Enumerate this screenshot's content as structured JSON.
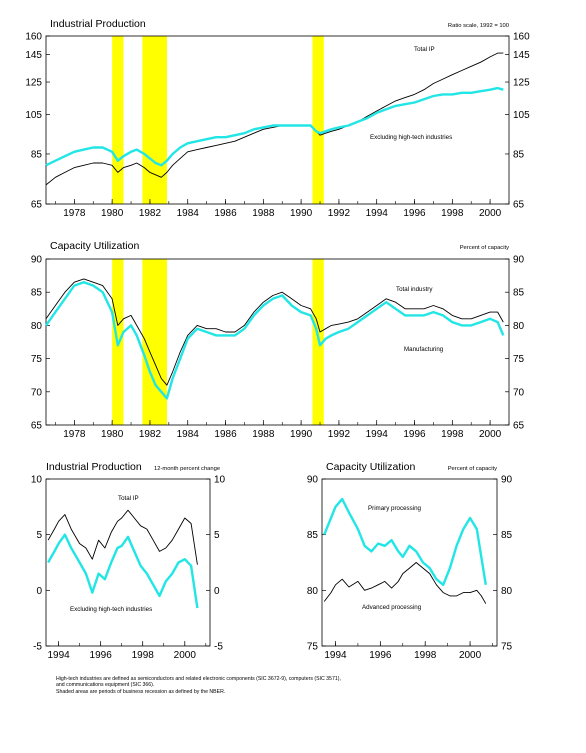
{
  "colors": {
    "primary": "#000000",
    "secondary": "#22e5e5",
    "recession": "#ffff00"
  },
  "chart_data": [
    {
      "type": "line",
      "title": "Industrial Production",
      "note": "Ratio scale, 1992 = 100",
      "log_scale": true,
      "xlim": [
        1976.5,
        2001.0
      ],
      "ylim": [
        65,
        160
      ],
      "y_ticks": [
        65,
        85,
        105,
        125,
        145,
        160
      ],
      "x_ticks": [
        1978,
        1980,
        1982,
        1984,
        1986,
        1988,
        1990,
        1992,
        1994,
        1996,
        1998,
        2000
      ],
      "recessions": [
        [
          1980.0,
          1980.6
        ],
        [
          1981.6,
          1982.9
        ],
        [
          1990.6,
          1991.2
        ]
      ],
      "series": [
        {
          "name": "Total IP",
          "color": "primary",
          "x": [
            1976.5,
            1977.0,
            1977.5,
            1978.0,
            1978.5,
            1979.0,
            1979.5,
            1980.0,
            1980.3,
            1980.6,
            1981.0,
            1981.3,
            1981.7,
            1982.0,
            1982.3,
            1982.6,
            1982.9,
            1983.2,
            1983.6,
            1984.0,
            1984.5,
            1985.0,
            1985.5,
            1986.0,
            1986.5,
            1987.0,
            1987.5,
            1988.0,
            1988.5,
            1989.0,
            1989.5,
            1990.0,
            1990.5,
            1990.8,
            1991.0,
            1991.3,
            1991.6,
            1992.0,
            1992.5,
            1993.0,
            1993.5,
            1994.0,
            1994.5,
            1995.0,
            1995.5,
            1996.0,
            1996.5,
            1997.0,
            1997.5,
            1998.0,
            1998.5,
            1999.0,
            1999.5,
            2000.0,
            2000.4,
            2000.7
          ],
          "y": [
            72,
            75,
            77,
            79,
            80,
            81,
            81,
            80,
            77,
            79,
            80,
            81,
            79,
            77,
            76,
            75,
            77,
            80,
            83,
            86,
            87,
            88,
            89,
            90,
            91,
            93,
            95,
            97,
            98,
            99,
            99,
            99,
            99,
            96,
            94,
            95,
            96,
            97,
            99,
            101,
            104,
            107,
            110,
            113,
            115,
            117,
            120,
            124,
            127,
            130,
            133,
            136,
            139,
            143,
            146,
            146
          ]
        },
        {
          "name": "Excluding high-tech industries",
          "color": "secondary",
          "x": [
            1976.5,
            1977.0,
            1977.5,
            1978.0,
            1978.5,
            1979.0,
            1979.5,
            1980.0,
            1980.3,
            1980.6,
            1981.0,
            1981.3,
            1981.7,
            1982.0,
            1982.3,
            1982.6,
            1982.9,
            1983.2,
            1983.6,
            1984.0,
            1984.5,
            1985.0,
            1985.5,
            1986.0,
            1986.5,
            1987.0,
            1987.5,
            1988.0,
            1988.5,
            1989.0,
            1989.5,
            1990.0,
            1990.5,
            1990.8,
            1991.0,
            1991.3,
            1991.6,
            1992.0,
            1992.5,
            1993.0,
            1993.5,
            1994.0,
            1994.5,
            1995.0,
            1995.5,
            1996.0,
            1996.5,
            1997.0,
            1997.5,
            1998.0,
            1998.5,
            1999.0,
            1999.5,
            2000.0,
            2000.4,
            2000.7
          ],
          "y": [
            80,
            82,
            84,
            86,
            87,
            88,
            88,
            86,
            82,
            84,
            86,
            87,
            85,
            83,
            81,
            80,
            82,
            85,
            88,
            90,
            91,
            92,
            93,
            93,
            94,
            95,
            97,
            98,
            99,
            99,
            99,
            99,
            99,
            96,
            95,
            96,
            97,
            98,
            99,
            101,
            103,
            106,
            108,
            110,
            111,
            112,
            114,
            116,
            117,
            117,
            118,
            118,
            119,
            120,
            121,
            120
          ]
        }
      ]
    },
    {
      "type": "line",
      "title": "Capacity Utilization",
      "note": "Percent of capacity",
      "xlim": [
        1976.5,
        2001.0
      ],
      "ylim": [
        65,
        90
      ],
      "y_ticks": [
        65,
        70,
        75,
        80,
        85,
        90
      ],
      "x_ticks": [
        1978,
        1980,
        1982,
        1984,
        1986,
        1988,
        1990,
        1992,
        1994,
        1996,
        1998,
        2000
      ],
      "recessions": [
        [
          1980.0,
          1980.6
        ],
        [
          1981.6,
          1982.9
        ],
        [
          1990.6,
          1991.2
        ]
      ],
      "series": [
        {
          "name": "Total industry",
          "color": "primary",
          "x": [
            1976.5,
            1977.0,
            1977.5,
            1978.0,
            1978.5,
            1979.0,
            1979.5,
            1980.0,
            1980.3,
            1980.6,
            1981.0,
            1981.3,
            1981.7,
            1982.0,
            1982.3,
            1982.6,
            1982.9,
            1983.2,
            1983.6,
            1984.0,
            1984.5,
            1985.0,
            1985.5,
            1986.0,
            1986.5,
            1987.0,
            1987.5,
            1988.0,
            1988.5,
            1989.0,
            1989.5,
            1990.0,
            1990.5,
            1990.8,
            1991.0,
            1991.3,
            1991.6,
            1992.0,
            1992.5,
            1993.0,
            1993.5,
            1994.0,
            1994.5,
            1995.0,
            1995.5,
            1996.0,
            1996.5,
            1997.0,
            1997.5,
            1998.0,
            1998.5,
            1999.0,
            1999.5,
            2000.0,
            2000.4,
            2000.7
          ],
          "y": [
            81,
            83,
            85,
            86.5,
            87,
            86.5,
            86,
            84,
            80,
            81,
            81.5,
            80,
            78,
            76,
            74,
            72,
            71,
            73,
            76,
            78.5,
            80,
            79.5,
            79.5,
            79,
            79,
            80,
            82,
            83.5,
            84.5,
            85,
            84,
            83,
            82.5,
            81,
            79,
            79.5,
            80,
            80.2,
            80.5,
            81,
            82,
            83,
            84,
            83.5,
            82.5,
            82.5,
            82.5,
            83,
            82.5,
            81.5,
            81,
            81,
            81.5,
            82,
            82,
            80.5
          ]
        },
        {
          "name": "Manufacturing",
          "color": "secondary",
          "x": [
            1976.5,
            1977.0,
            1977.5,
            1978.0,
            1978.5,
            1979.0,
            1979.5,
            1980.0,
            1980.3,
            1980.6,
            1981.0,
            1981.3,
            1981.7,
            1982.0,
            1982.3,
            1982.6,
            1982.9,
            1983.2,
            1983.6,
            1984.0,
            1984.5,
            1985.0,
            1985.5,
            1986.0,
            1986.5,
            1987.0,
            1987.5,
            1988.0,
            1988.5,
            1989.0,
            1989.5,
            1990.0,
            1990.5,
            1990.8,
            1991.0,
            1991.3,
            1991.6,
            1992.0,
            1992.5,
            1993.0,
            1993.5,
            1994.0,
            1994.5,
            1995.0,
            1995.5,
            1996.0,
            1996.5,
            1997.0,
            1997.5,
            1998.0,
            1998.5,
            1999.0,
            1999.5,
            2000.0,
            2000.4,
            2000.7
          ],
          "y": [
            80,
            82,
            84,
            86,
            86.5,
            86,
            85,
            82,
            77,
            79,
            80,
            78.5,
            75.5,
            73,
            71,
            70,
            69,
            72,
            75,
            78,
            79.5,
            79,
            78.5,
            78.5,
            78.5,
            79.5,
            81.5,
            83,
            84,
            84.5,
            83,
            82,
            81.5,
            79.5,
            77,
            78,
            78.5,
            79,
            79.5,
            80.5,
            81.5,
            82.5,
            83.5,
            82.5,
            81.5,
            81.5,
            81.5,
            82,
            81.5,
            80.5,
            80,
            80,
            80.5,
            81,
            80.5,
            78.5
          ]
        }
      ]
    },
    {
      "type": "line",
      "title": "Industrial Production",
      "note": "12-month percent change",
      "xlim": [
        1993.4,
        2001.2
      ],
      "ylim": [
        -5,
        10
      ],
      "y_ticks": [
        -5,
        0,
        5,
        10
      ],
      "x_ticks": [
        1994,
        1996,
        1998,
        2000
      ],
      "series": [
        {
          "name": "Total IP",
          "color": "primary",
          "x": [
            1993.5,
            1993.8,
            1994.0,
            1994.3,
            1994.6,
            1995.0,
            1995.3,
            1995.6,
            1995.9,
            1996.2,
            1996.5,
            1996.8,
            1997.0,
            1997.3,
            1997.6,
            1997.9,
            1998.2,
            1998.5,
            1998.8,
            1999.1,
            1999.4,
            1999.7,
            2000.0,
            2000.3,
            2000.6
          ],
          "y": [
            4.5,
            5.5,
            6.2,
            6.8,
            5.5,
            4.2,
            3.8,
            2.8,
            4.5,
            3.8,
            5.2,
            6.2,
            6.5,
            7.2,
            6.5,
            5.8,
            5.5,
            4.5,
            3.5,
            3.8,
            4.5,
            5.5,
            6.5,
            6.0,
            2.3
          ]
        },
        {
          "name": "Excluding high-tech industries",
          "color": "secondary",
          "x": [
            1993.5,
            1993.8,
            1994.0,
            1994.3,
            1994.6,
            1995.0,
            1995.3,
            1995.6,
            1995.9,
            1996.2,
            1996.5,
            1996.8,
            1997.0,
            1997.3,
            1997.6,
            1997.9,
            1998.2,
            1998.5,
            1998.8,
            1999.1,
            1999.4,
            1999.7,
            2000.0,
            2000.3,
            2000.6
          ],
          "y": [
            2.5,
            3.5,
            4.2,
            5.0,
            3.8,
            2.5,
            1.5,
            -0.2,
            1.5,
            1.0,
            2.5,
            3.8,
            4.0,
            4.8,
            3.5,
            2.2,
            1.5,
            0.5,
            -0.5,
            0.8,
            1.5,
            2.5,
            2.8,
            2.2,
            -1.6
          ]
        }
      ]
    },
    {
      "type": "line",
      "title": "Capacity Utilization",
      "note": "Percent of capacity",
      "xlim": [
        1993.4,
        2001.2
      ],
      "ylim": [
        75,
        90
      ],
      "y_ticks": [
        75,
        80,
        85,
        90
      ],
      "x_ticks": [
        1994,
        1996,
        1998,
        2000
      ],
      "series": [
        {
          "name": "Primary processing",
          "color": "secondary",
          "x": [
            1993.5,
            1993.8,
            1994.0,
            1994.3,
            1994.6,
            1995.0,
            1995.3,
            1995.6,
            1995.9,
            1996.2,
            1996.5,
            1996.8,
            1997.0,
            1997.3,
            1997.6,
            1997.9,
            1998.2,
            1998.5,
            1998.8,
            1999.1,
            1999.4,
            1999.7,
            2000.0,
            2000.3,
            2000.5,
            2000.7
          ],
          "y": [
            85,
            86.5,
            87.5,
            88.2,
            87,
            85.5,
            84,
            83.5,
            84.2,
            84,
            84.5,
            83.5,
            83,
            84,
            83.5,
            82.5,
            82,
            81,
            80.5,
            82,
            84,
            85.5,
            86.5,
            85.5,
            83,
            80.5
          ]
        },
        {
          "name": "Advanced processing",
          "color": "primary",
          "x": [
            1993.5,
            1993.8,
            1994.0,
            1994.3,
            1994.6,
            1995.0,
            1995.3,
            1995.6,
            1995.9,
            1996.2,
            1996.5,
            1996.8,
            1997.0,
            1997.3,
            1997.6,
            1997.9,
            1998.2,
            1998.5,
            1998.8,
            1999.1,
            1999.4,
            1999.7,
            2000.0,
            2000.3,
            2000.5,
            2000.7
          ],
          "y": [
            79,
            79.8,
            80.5,
            81,
            80.3,
            80.8,
            80,
            80.2,
            80.5,
            80.8,
            80.2,
            80.8,
            81.5,
            82,
            82.5,
            82,
            81.5,
            80.5,
            79.8,
            79.5,
            79.5,
            79.8,
            79.8,
            80,
            79.5,
            78.8
          ]
        }
      ]
    }
  ],
  "footnotes": [
    "High-tech industries are defined as semiconductors and related electronic components (SIC 3672-9), computers (SIC 3571),",
    "and communications equipment (SIC 366).",
    "Shaded areas are periods of business recession as defined by the NBER."
  ]
}
